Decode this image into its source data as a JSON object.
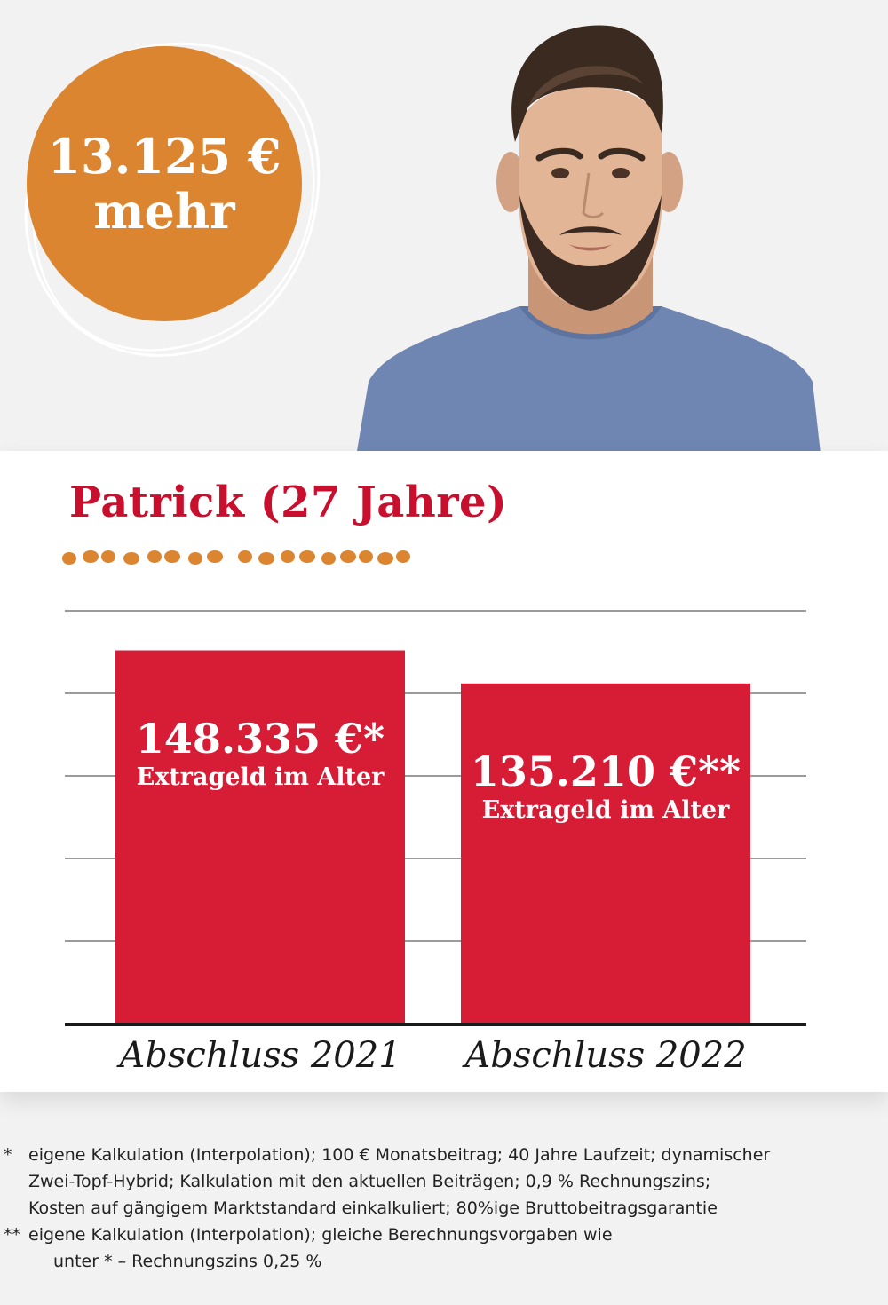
{
  "badge": {
    "amount": "13.125 €",
    "word": "mehr",
    "color": "#dc8530"
  },
  "card": {
    "title": "Patrick (27 Jahre)",
    "title_color": "#c8102e",
    "dots_color": "#dc8530"
  },
  "chart_data": {
    "type": "bar",
    "categories": [
      "Abschluss 2021",
      "Abschluss 2022"
    ],
    "values": [
      148335,
      135210
    ],
    "value_labels": [
      "148.335 €*",
      "135.210 €**"
    ],
    "bar_caption": "Extrageld im Alter",
    "bar_color": "#d71c36",
    "ylim": [
      0,
      164000
    ],
    "grid": true,
    "legend": "none"
  },
  "footnotes": [
    {
      "mark": "*",
      "lines": [
        "eigene Kalkulation (Interpolation); 100 € Monatsbeitrag; 40 Jahre Laufzeit; dynamischer",
        "Zwei-Topf-Hybrid; Kalkulation mit den aktuellen Beiträgen; 0,9 % Rechnungszins;",
        "Kosten auf gängigem Marktstandard einkalkuliert; 80%ige Bruttobeitragsgarantie"
      ]
    },
    {
      "mark": "**",
      "lines": [
        "eigene Kalkulation (Interpolation); gleiche Berechnungsvorgaben wie",
        "unter * – Rechnungszins 0,25 %"
      ]
    }
  ]
}
